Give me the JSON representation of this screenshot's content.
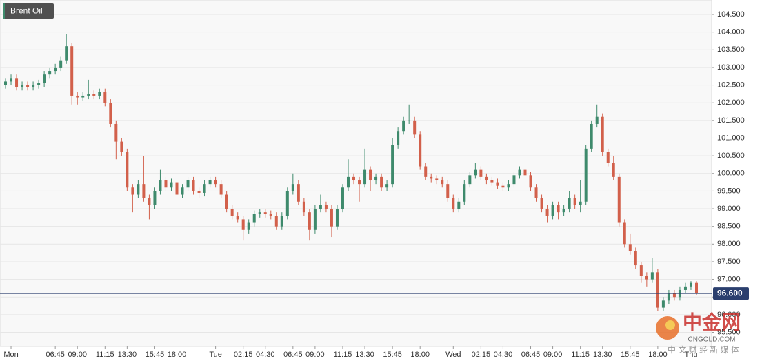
{
  "chart_data": {
    "type": "candlestick",
    "title": "Brent Oil",
    "categories": [
      null,
      "Mon",
      null,
      null,
      null,
      null,
      null,
      null,
      null,
      "06:45",
      null,
      null,
      null,
      "09:00",
      null,
      null,
      null,
      null,
      "11:15",
      null,
      null,
      null,
      "13:30",
      null,
      null,
      null,
      null,
      "15:45",
      null,
      null,
      null,
      "18:00",
      null,
      null,
      null,
      null,
      null,
      null,
      "Tue",
      null,
      null,
      null,
      null,
      "02:15",
      null,
      null,
      null,
      "04:30",
      null,
      null,
      null,
      null,
      "06:45",
      null,
      null,
      null,
      "09:00",
      null,
      null,
      null,
      null,
      "11:15",
      null,
      null,
      null,
      "13:30",
      null,
      null,
      null,
      null,
      "15:45",
      null,
      null,
      null,
      null,
      "18:00",
      null,
      null,
      null,
      null,
      null,
      "Wed",
      null,
      null,
      null,
      null,
      "02:15",
      null,
      null,
      null,
      "04:30",
      null,
      null,
      null,
      null,
      "06:45",
      null,
      null,
      null,
      "09:00",
      null,
      null,
      null,
      null,
      "11:15",
      null,
      null,
      null,
      "13:30",
      null,
      null,
      null,
      null,
      "15:45",
      null,
      null,
      null,
      null,
      "18:00",
      null,
      null,
      null,
      null,
      null,
      "Thu",
      null
    ],
    "open": [
      102.5,
      102.6,
      102.7,
      102.45,
      102.5,
      102.45,
      102.5,
      102.55,
      102.8,
      102.9,
      103.0,
      103.2,
      103.6,
      102.2,
      102.15,
      102.2,
      102.25,
      102.2,
      102.3,
      102.0,
      101.4,
      100.9,
      100.6,
      99.6,
      99.4,
      99.7,
      99.3,
      99.1,
      99.5,
      99.8,
      99.6,
      99.75,
      99.4,
      99.6,
      99.8,
      99.5,
      99.45,
      99.7,
      99.8,
      99.7,
      99.4,
      99.0,
      98.8,
      98.7,
      98.4,
      98.6,
      98.85,
      98.9,
      98.85,
      98.8,
      98.5,
      98.8,
      99.5,
      99.7,
      99.2,
      98.9,
      98.4,
      99.0,
      99.1,
      99.0,
      98.5,
      99.0,
      99.6,
      99.9,
      99.8,
      99.7,
      100.1,
      99.8,
      99.9,
      99.6,
      99.7,
      100.8,
      101.2,
      101.5,
      101.5,
      101.1,
      100.2,
      99.9,
      99.85,
      99.8,
      99.7,
      99.3,
      99.0,
      99.2,
      99.7,
      99.95,
      100.1,
      99.9,
      99.8,
      99.75,
      99.65,
      99.6,
      99.7,
      99.95,
      100.1,
      99.95,
      99.6,
      99.3,
      99.0,
      98.8,
      99.1,
      98.9,
      99.0,
      99.3,
      99.1,
      99.2,
      100.7,
      101.4,
      101.6,
      100.6,
      100.3,
      99.9,
      98.6,
      98.0,
      97.8,
      97.4,
      97.1,
      97.0,
      97.2,
      96.2,
      96.4,
      96.6,
      96.5,
      96.7,
      96.8,
      96.9
    ],
    "high": [
      102.7,
      102.8,
      102.8,
      102.6,
      102.6,
      102.6,
      102.65,
      102.9,
      103.0,
      103.1,
      103.3,
      103.95,
      103.7,
      102.3,
      102.3,
      102.65,
      102.35,
      102.4,
      102.4,
      102.1,
      101.5,
      101.0,
      100.7,
      99.7,
      99.8,
      100.5,
      99.4,
      99.6,
      100.1,
      99.9,
      99.85,
      99.85,
      99.7,
      99.9,
      99.9,
      99.6,
      99.8,
      99.9,
      99.9,
      99.8,
      99.5,
      99.1,
      98.9,
      98.8,
      98.7,
      98.95,
      99.0,
      99.0,
      98.95,
      98.9,
      98.9,
      99.6,
      100.0,
      99.8,
      99.3,
      99.0,
      99.1,
      99.4,
      99.2,
      99.1,
      99.1,
      99.7,
      100.4,
      100.0,
      99.9,
      100.7,
      100.2,
      100.0,
      100.0,
      99.8,
      101.0,
      101.3,
      101.6,
      101.95,
      101.6,
      101.2,
      100.3,
      100.0,
      99.95,
      99.9,
      99.8,
      99.4,
      99.3,
      99.8,
      100.05,
      100.3,
      100.2,
      100.0,
      99.9,
      99.85,
      99.75,
      99.8,
      100.05,
      100.2,
      100.2,
      100.05,
      99.7,
      99.4,
      99.1,
      99.2,
      99.2,
      99.1,
      99.5,
      99.4,
      99.8,
      100.8,
      101.5,
      101.95,
      101.7,
      100.7,
      100.5,
      100.0,
      98.7,
      98.3,
      97.9,
      97.5,
      97.2,
      97.6,
      97.3,
      96.5,
      96.7,
      96.7,
      96.8,
      96.9,
      96.95,
      96.95
    ],
    "low": [
      102.4,
      102.5,
      102.35,
      102.35,
      102.35,
      102.35,
      102.4,
      102.45,
      102.7,
      102.8,
      102.9,
      103.1,
      101.95,
      101.95,
      102.05,
      102.1,
      102.1,
      102.1,
      101.9,
      101.3,
      100.4,
      100.5,
      99.5,
      98.9,
      99.3,
      99.2,
      98.7,
      99.0,
      99.4,
      99.5,
      99.5,
      99.3,
      99.3,
      99.5,
      99.4,
      99.3,
      99.35,
      99.6,
      99.6,
      99.3,
      98.9,
      98.7,
      98.6,
      98.1,
      98.3,
      98.5,
      98.75,
      98.75,
      98.7,
      98.4,
      98.4,
      98.7,
      99.4,
      99.1,
      98.8,
      98.1,
      98.3,
      98.9,
      98.9,
      98.2,
      98.4,
      98.9,
      99.5,
      99.7,
      99.2,
      99.6,
      99.5,
      99.7,
      99.5,
      99.5,
      99.6,
      100.7,
      101.1,
      101.4,
      101.0,
      100.1,
      99.8,
      99.75,
      99.7,
      99.6,
      99.2,
      98.9,
      98.9,
      99.1,
      99.6,
      99.85,
      99.8,
      99.7,
      99.65,
      99.55,
      99.5,
      99.5,
      99.6,
      99.85,
      99.85,
      99.5,
      99.2,
      98.9,
      98.6,
      98.7,
      98.7,
      98.8,
      98.9,
      99.0,
      98.9,
      99.1,
      100.6,
      101.3,
      100.5,
      100.2,
      99.8,
      98.5,
      97.9,
      97.7,
      97.3,
      96.9,
      96.8,
      96.9,
      96.1,
      96.1,
      96.3,
      96.4,
      96.4,
      96.6,
      96.7,
      96.55
    ],
    "close": [
      102.6,
      102.7,
      102.45,
      102.5,
      102.45,
      102.5,
      102.55,
      102.8,
      102.9,
      103.0,
      103.2,
      103.6,
      102.2,
      102.15,
      102.2,
      102.25,
      102.2,
      102.3,
      102.0,
      101.4,
      100.9,
      100.6,
      99.6,
      99.4,
      99.7,
      99.3,
      99.1,
      99.5,
      99.8,
      99.6,
      99.75,
      99.4,
      99.6,
      99.8,
      99.5,
      99.45,
      99.7,
      99.8,
      99.7,
      99.4,
      99.0,
      98.8,
      98.7,
      98.4,
      98.6,
      98.85,
      98.9,
      98.85,
      98.8,
      98.5,
      98.8,
      99.5,
      99.7,
      99.2,
      98.9,
      98.4,
      99.0,
      99.1,
      99.0,
      98.5,
      99.0,
      99.6,
      99.9,
      99.8,
      99.7,
      100.1,
      99.8,
      99.9,
      99.6,
      99.7,
      100.8,
      101.2,
      101.5,
      101.5,
      101.1,
      100.2,
      99.9,
      99.85,
      99.8,
      99.7,
      99.3,
      99.0,
      99.2,
      99.7,
      99.95,
      100.1,
      99.9,
      99.8,
      99.75,
      99.65,
      99.6,
      99.7,
      99.95,
      100.1,
      99.95,
      99.6,
      99.3,
      99.0,
      98.8,
      99.1,
      98.9,
      99.0,
      99.3,
      99.1,
      99.2,
      100.7,
      101.4,
      101.6,
      100.6,
      100.3,
      99.9,
      98.6,
      98.0,
      97.8,
      97.4,
      97.1,
      97.0,
      97.2,
      96.2,
      96.4,
      96.6,
      96.5,
      96.7,
      96.8,
      96.9,
      96.6
    ],
    "up_color": "#3e8a6c",
    "down_color": "#d2604b",
    "ylim": [
      95.1,
      104.91
    ],
    "yticks": [
      {
        "value": 95.5,
        "label": "95.500"
      },
      {
        "value": 96,
        "label": "96.000"
      },
      {
        "value": 96.5,
        "label": "96.500"
      },
      {
        "value": 97,
        "label": "97.000"
      },
      {
        "value": 97.5,
        "label": "97.500"
      },
      {
        "value": 98,
        "label": "98.000"
      },
      {
        "value": 98.5,
        "label": "98.500"
      },
      {
        "value": 99,
        "label": "99.000"
      },
      {
        "value": 99.5,
        "label": "99.500"
      },
      {
        "value": 100,
        "label": "100.000"
      },
      {
        "value": 100.5,
        "label": "100.500"
      },
      {
        "value": 101,
        "label": "101.000"
      },
      {
        "value": 101.5,
        "label": "101.500"
      },
      {
        "value": 102,
        "label": "102.000"
      },
      {
        "value": 102.5,
        "label": "102.500"
      },
      {
        "value": 103,
        "label": "103.000"
      },
      {
        "value": 103.5,
        "label": "103.500"
      },
      {
        "value": 104,
        "label": "104.000"
      },
      {
        "value": 104.5,
        "label": "104.500"
      }
    ],
    "grid": true,
    "current_price": {
      "value": 96.6,
      "label": "96.600",
      "color": "#2b3f6e"
    },
    "watermark": {
      "name": "中金网",
      "domain": "CNGOLD.COM",
      "tagline": "中 文 财 经 新 媒 体"
    }
  }
}
